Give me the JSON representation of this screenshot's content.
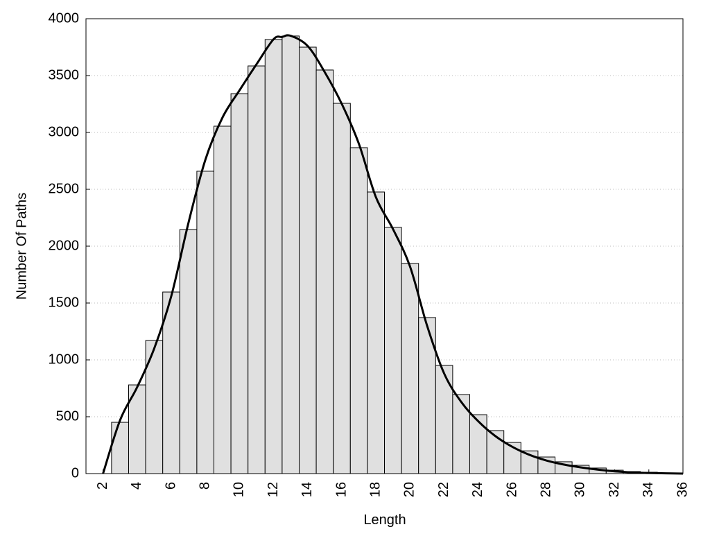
{
  "chart_data": {
    "type": "histogram",
    "x_label": "Length",
    "y_label": "Number Of Paths",
    "bins": [
      2.5,
      3.5,
      4.5,
      5.5,
      6.5,
      7.5,
      8.5,
      9.5,
      10.5,
      11.5,
      12.5,
      13.5,
      14.5,
      15.5,
      16.5,
      17.5,
      18.5,
      19.5,
      20.5,
      21.5,
      22.5,
      23.5,
      24.5,
      25.5,
      26.5,
      27.5,
      28.5,
      29.5,
      30.5,
      31.5,
      32.5,
      33.5,
      34.5,
      35.5
    ],
    "values": [
      451,
      780,
      1170,
      1597,
      2146,
      2659,
      3055,
      3341,
      3585,
      3817,
      3848,
      3750,
      3549,
      3256,
      2866,
      2476,
      2165,
      1848,
      1372,
      951,
      695,
      518,
      378,
      274,
      200,
      146,
      104,
      73,
      49,
      30,
      18,
      12,
      6
    ],
    "color": "#e0e0e0",
    "line": {
      "color": "#000000",
      "x": [
        2,
        3,
        4,
        5,
        6,
        7,
        8,
        9,
        10,
        11,
        12,
        12.5,
        13,
        14,
        15,
        16,
        17,
        18,
        19,
        20,
        21,
        22,
        23,
        24,
        25,
        26,
        27,
        28,
        29,
        30,
        31,
        32,
        33,
        34,
        35,
        36
      ],
      "values": [
        0,
        470,
        760,
        1100,
        1560,
        2200,
        2760,
        3130,
        3370,
        3600,
        3820,
        3840,
        3850,
        3760,
        3530,
        3250,
        2900,
        2430,
        2150,
        1820,
        1300,
        880,
        630,
        460,
        330,
        235,
        165,
        115,
        80,
        55,
        35,
        20,
        10,
        5,
        2,
        0
      ]
    },
    "xlim": [
      1,
      36
    ],
    "xticks": [
      2,
      4,
      6,
      8,
      10,
      12,
      14,
      16,
      18,
      20,
      22,
      24,
      26,
      28,
      30,
      32,
      34,
      36
    ],
    "ylim": [
      0,
      4000
    ],
    "yticks": [
      0,
      500,
      1000,
      1500,
      2000,
      2500,
      3000,
      3500,
      4000
    ],
    "grid": true
  }
}
